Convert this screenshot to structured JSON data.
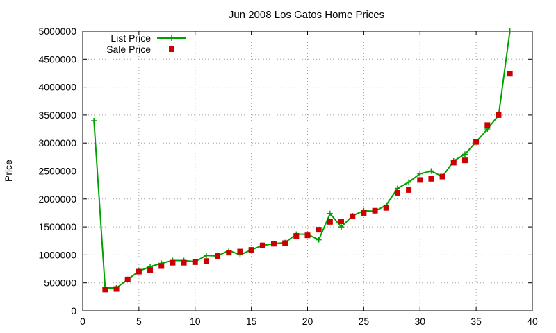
{
  "chart_data": {
    "type": "line",
    "title": "Jun 2008 Los Gatos Home Prices",
    "xlabel": "",
    "ylabel": "Price",
    "xlim": [
      0,
      40
    ],
    "ylim": [
      0,
      5000000
    ],
    "x_ticks": [
      "0",
      "5",
      "10",
      "15",
      "20",
      "25",
      "30",
      "35",
      "40"
    ],
    "y_ticks": [
      "0",
      "500000",
      "1000000",
      "1500000",
      "2000000",
      "2500000",
      "3000000",
      "3500000",
      "4000000",
      "4500000",
      "5000000"
    ],
    "grid": true,
    "legend_position": "top-left",
    "series": [
      {
        "name": "List Price",
        "style": "line+cross",
        "color": "#00a000",
        "points": [
          [
            1,
            3400000
          ],
          [
            2,
            410000
          ],
          [
            3,
            410000
          ],
          [
            4,
            560000
          ],
          [
            5,
            710000
          ],
          [
            6,
            790000
          ],
          [
            7,
            850000
          ],
          [
            8,
            900000
          ],
          [
            9,
            900000
          ],
          [
            10,
            880000
          ],
          [
            11,
            990000
          ],
          [
            12,
            980000
          ],
          [
            13,
            1080000
          ],
          [
            14,
            1000000
          ],
          [
            15,
            1090000
          ],
          [
            16,
            1170000
          ],
          [
            17,
            1200000
          ],
          [
            18,
            1220000
          ],
          [
            19,
            1370000
          ],
          [
            20,
            1370000
          ],
          [
            21,
            1270000
          ],
          [
            22,
            1740000
          ],
          [
            23,
            1500000
          ],
          [
            24,
            1700000
          ],
          [
            25,
            1790000
          ],
          [
            26,
            1780000
          ],
          [
            27,
            1890000
          ],
          [
            28,
            2190000
          ],
          [
            29,
            2300000
          ],
          [
            30,
            2450000
          ],
          [
            31,
            2500000
          ],
          [
            32,
            2400000
          ],
          [
            33,
            2680000
          ],
          [
            34,
            2800000
          ],
          [
            35,
            3020000
          ],
          [
            36,
            3250000
          ],
          [
            37,
            3500000
          ],
          [
            38,
            5000000
          ]
        ]
      },
      {
        "name": "Sale Price",
        "style": "square",
        "color": "#cc0000",
        "points": [
          [
            2,
            380000
          ],
          [
            3,
            390000
          ],
          [
            4,
            560000
          ],
          [
            5,
            700000
          ],
          [
            6,
            730000
          ],
          [
            7,
            800000
          ],
          [
            8,
            860000
          ],
          [
            9,
            860000
          ],
          [
            10,
            870000
          ],
          [
            11,
            890000
          ],
          [
            12,
            980000
          ],
          [
            13,
            1040000
          ],
          [
            14,
            1060000
          ],
          [
            15,
            1090000
          ],
          [
            16,
            1170000
          ],
          [
            17,
            1200000
          ],
          [
            18,
            1210000
          ],
          [
            19,
            1340000
          ],
          [
            20,
            1350000
          ],
          [
            21,
            1450000
          ],
          [
            22,
            1590000
          ],
          [
            23,
            1600000
          ],
          [
            24,
            1690000
          ],
          [
            25,
            1750000
          ],
          [
            26,
            1790000
          ],
          [
            27,
            1840000
          ],
          [
            28,
            2110000
          ],
          [
            29,
            2160000
          ],
          [
            30,
            2340000
          ],
          [
            31,
            2360000
          ],
          [
            32,
            2400000
          ],
          [
            33,
            2650000
          ],
          [
            34,
            2690000
          ],
          [
            35,
            3020000
          ],
          [
            36,
            3320000
          ],
          [
            37,
            3500000
          ],
          [
            38,
            4240000
          ]
        ]
      }
    ]
  }
}
